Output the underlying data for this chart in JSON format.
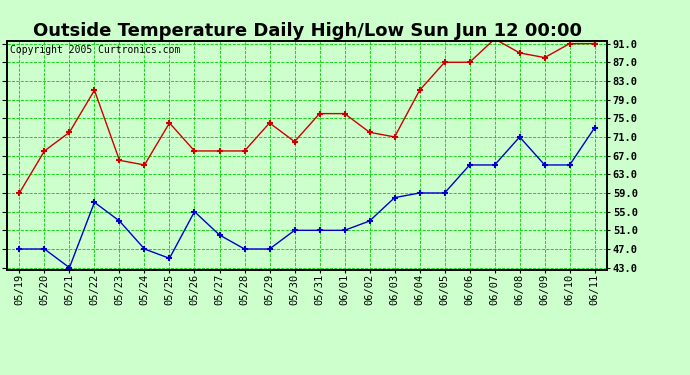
{
  "title": "Outside Temperature Daily High/Low Sun Jun 12 00:00",
  "copyright": "Copyright 2005 Curtronics.com",
  "dates": [
    "05/19",
    "05/20",
    "05/21",
    "05/22",
    "05/23",
    "05/24",
    "05/25",
    "05/26",
    "05/27",
    "05/28",
    "05/29",
    "05/30",
    "05/31",
    "06/01",
    "06/02",
    "06/03",
    "06/04",
    "06/05",
    "06/06",
    "06/07",
    "06/08",
    "06/09",
    "06/10",
    "06/11"
  ],
  "high_temps": [
    59.0,
    68.0,
    72.0,
    81.0,
    66.0,
    65.0,
    74.0,
    68.0,
    68.0,
    68.0,
    74.0,
    70.0,
    76.0,
    76.0,
    72.0,
    71.0,
    81.0,
    87.0,
    87.0,
    92.0,
    89.0,
    88.0,
    91.0,
    91.0
  ],
  "low_temps": [
    47.0,
    47.0,
    43.0,
    57.0,
    53.0,
    47.0,
    45.0,
    55.0,
    50.0,
    47.0,
    47.0,
    51.0,
    51.0,
    51.0,
    53.0,
    58.0,
    59.0,
    59.0,
    65.0,
    65.0,
    71.0,
    65.0,
    65.0,
    73.0
  ],
  "high_color": "#cc0000",
  "low_color": "#0000cc",
  "bg_color": "#ccffcc",
  "grid_color": "#00cc00",
  "border_color": "#000000",
  "ymin": 43.0,
  "ymax": 91.0,
  "ytick_step": 4.0,
  "yticks": [
    43.0,
    47.0,
    51.0,
    55.0,
    59.0,
    63.0,
    67.0,
    71.0,
    75.0,
    79.0,
    83.0,
    87.0,
    91.0
  ],
  "title_fontsize": 13,
  "label_fontsize": 7.5,
  "copyright_fontsize": 7
}
